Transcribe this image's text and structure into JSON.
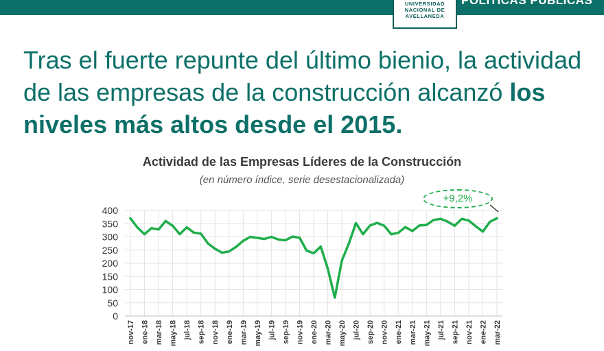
{
  "header": {
    "logo_lines": [
      "UNIVERSIDAD",
      "NACIONAL DE",
      "AVELLANEDA"
    ],
    "section_label": "POLÍTICAS PÚBLICAS"
  },
  "headline": {
    "part1": "Tras el fuerte repunte del último bienio, la actividad de las empresas de la construcción alcanzó ",
    "bold": "los niveles más altos desde el 2015."
  },
  "chart_data": {
    "type": "line",
    "title": "Actividad de las Empresas Líderes de la Construcción",
    "subtitle": "(en número índice, serie desestacionalizada)",
    "ylim": [
      0,
      400
    ],
    "yticks": [
      0,
      50,
      100,
      150,
      200,
      250,
      300,
      350,
      400
    ],
    "grid": true,
    "color": "#1fae4b",
    "x": [
      "nov-17",
      "dic-17",
      "ene-18",
      "feb-18",
      "mar-18",
      "abr-18",
      "may-18",
      "jun-18",
      "jul-18",
      "ago-18",
      "sep-18",
      "oct-18",
      "nov-18",
      "dic-18",
      "ene-19",
      "feb-19",
      "mar-19",
      "abr-19",
      "may-19",
      "jun-19",
      "jul-19",
      "ago-19",
      "sep-19",
      "oct-19",
      "nov-19",
      "dic-19",
      "ene-20",
      "feb-20",
      "mar-20",
      "abr-20",
      "may-20",
      "jun-20",
      "jul-20",
      "ago-20",
      "sep-20",
      "oct-20",
      "nov-20",
      "dic-20",
      "ene-21",
      "feb-21",
      "mar-21",
      "abr-21",
      "may-21",
      "jun-21",
      "jul-21",
      "ago-21",
      "sep-21",
      "oct-21",
      "nov-21",
      "dic-21",
      "ene-22",
      "feb-22",
      "mar-22"
    ],
    "values": [
      370,
      335,
      310,
      333,
      328,
      360,
      342,
      310,
      336,
      316,
      312,
      275,
      255,
      240,
      245,
      262,
      285,
      300,
      296,
      292,
      300,
      290,
      287,
      301,
      297,
      248,
      238,
      263,
      180,
      70,
      210,
      275,
      352,
      310,
      343,
      353,
      342,
      310,
      315,
      337,
      322,
      343,
      345,
      364,
      368,
      358,
      342,
      368,
      362,
      340,
      320,
      357,
      370
    ],
    "tick_labels": [
      "nov-17",
      "ene-18",
      "mar-18",
      "may-18",
      "jul-18",
      "sep-18",
      "nov-18",
      "ene-19",
      "mar-19",
      "may-19",
      "jul-19",
      "sep-19",
      "nov-19",
      "ene-20",
      "mar-20",
      "may-20",
      "jul-20",
      "sep-20",
      "nov-20",
      "ene-21",
      "mar-21",
      "may-21",
      "jul-21",
      "sep-21",
      "nov-21",
      "ene-22",
      "mar-22"
    ],
    "annotation": "+9,2%"
  }
}
